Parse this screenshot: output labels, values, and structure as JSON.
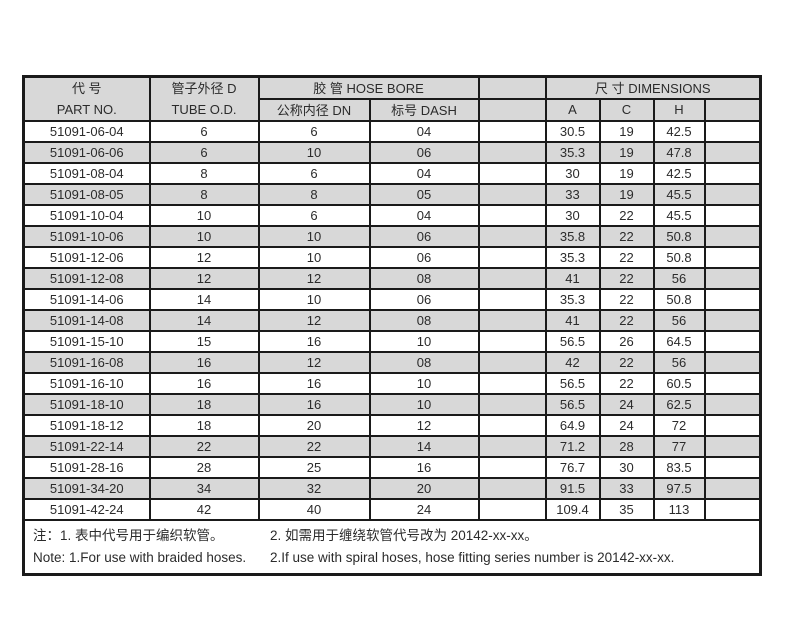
{
  "table": {
    "header_bg": "#d8d8d8",
    "row_alt_bg": "#d8d8d8",
    "border_color": "#1a1a1a",
    "header": {
      "part_no_zh": "代  号",
      "part_no_en": "PART NO.",
      "tube_od_zh": "管子外径 D",
      "tube_od_en": "TUBE O.D.",
      "hose_bore": "胶  管  HOSE BORE",
      "dn": "公称内径 DN",
      "dash": "标号 DASH",
      "dimensions": "尺  寸  DIMENSIONS",
      "col_a": "A",
      "col_c": "C",
      "col_h": "H"
    },
    "rows": [
      {
        "part": "51091-06-04",
        "od": "6",
        "dn": "6",
        "dash": "04",
        "a": "30.5",
        "c": "19",
        "h": "42.5"
      },
      {
        "part": "51091-06-06",
        "od": "6",
        "dn": "10",
        "dash": "06",
        "a": "35.3",
        "c": "19",
        "h": "47.8"
      },
      {
        "part": "51091-08-04",
        "od": "8",
        "dn": "6",
        "dash": "04",
        "a": "30",
        "c": "19",
        "h": "42.5"
      },
      {
        "part": "51091-08-05",
        "od": "8",
        "dn": "8",
        "dash": "05",
        "a": "33",
        "c": "19",
        "h": "45.5"
      },
      {
        "part": "51091-10-04",
        "od": "10",
        "dn": "6",
        "dash": "04",
        "a": "30",
        "c": "22",
        "h": "45.5"
      },
      {
        "part": "51091-10-06",
        "od": "10",
        "dn": "10",
        "dash": "06",
        "a": "35.8",
        "c": "22",
        "h": "50.8"
      },
      {
        "part": "51091-12-06",
        "od": "12",
        "dn": "10",
        "dash": "06",
        "a": "35.3",
        "c": "22",
        "h": "50.8"
      },
      {
        "part": "51091-12-08",
        "od": "12",
        "dn": "12",
        "dash": "08",
        "a": "41",
        "c": "22",
        "h": "56"
      },
      {
        "part": "51091-14-06",
        "od": "14",
        "dn": "10",
        "dash": "06",
        "a": "35.3",
        "c": "22",
        "h": "50.8"
      },
      {
        "part": "51091-14-08",
        "od": "14",
        "dn": "12",
        "dash": "08",
        "a": "41",
        "c": "22",
        "h": "56"
      },
      {
        "part": "51091-15-10",
        "od": "15",
        "dn": "16",
        "dash": "10",
        "a": "56.5",
        "c": "26",
        "h": "64.5"
      },
      {
        "part": "51091-16-08",
        "od": "16",
        "dn": "12",
        "dash": "08",
        "a": "42",
        "c": "22",
        "h": "56"
      },
      {
        "part": "51091-16-10",
        "od": "16",
        "dn": "16",
        "dash": "10",
        "a": "56.5",
        "c": "22",
        "h": "60.5"
      },
      {
        "part": "51091-18-10",
        "od": "18",
        "dn": "16",
        "dash": "10",
        "a": "56.5",
        "c": "24",
        "h": "62.5"
      },
      {
        "part": "51091-18-12",
        "od": "18",
        "dn": "20",
        "dash": "12",
        "a": "64.9",
        "c": "24",
        "h": "72"
      },
      {
        "part": "51091-22-14",
        "od": "22",
        "dn": "22",
        "dash": "14",
        "a": "71.2",
        "c": "28",
        "h": "77"
      },
      {
        "part": "51091-28-16",
        "od": "28",
        "dn": "25",
        "dash": "16",
        "a": "76.7",
        "c": "30",
        "h": "83.5"
      },
      {
        "part": "51091-34-20",
        "od": "34",
        "dn": "32",
        "dash": "20",
        "a": "91.5",
        "c": "33",
        "h": "97.5"
      },
      {
        "part": "51091-42-24",
        "od": "42",
        "dn": "40",
        "dash": "24",
        "a": "109.4",
        "c": "35",
        "h": "113"
      }
    ]
  },
  "notes": {
    "zh_first": "注：1. 表中代号用于编织软管。",
    "zh_second": "2. 如需用于缠绕软管代号改为 20142-xx-xx。",
    "en_first": "Note: 1.For use with braided hoses.",
    "en_second": "2.If use with spiral hoses, hose fitting series number is 20142-xx-xx."
  }
}
